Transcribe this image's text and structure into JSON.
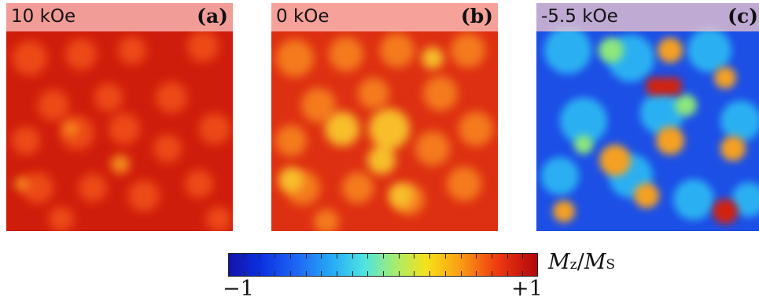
{
  "panels": [
    {
      "field": "10 kOe",
      "tag": "(a)",
      "colors": {
        "base": "#d9230f",
        "bright": "#f06a1a"
      }
    },
    {
      "field": "0 kOe",
      "tag": "(b)",
      "colors": {
        "base": "#e8441a",
        "bright": "#f7c42a"
      }
    },
    {
      "field": "-5.5 kOe",
      "tag": "(c)",
      "colors": {
        "base": "#1d5ef0",
        "bright": "#f5a020"
      }
    }
  ],
  "colorbar": {
    "min_label": "−1",
    "max_label": "+1",
    "label_main": "M",
    "label_sub1": "z",
    "label_slash": "/",
    "label_main2": "M",
    "label_sub2": "S",
    "range": [
      -1,
      1
    ]
  }
}
